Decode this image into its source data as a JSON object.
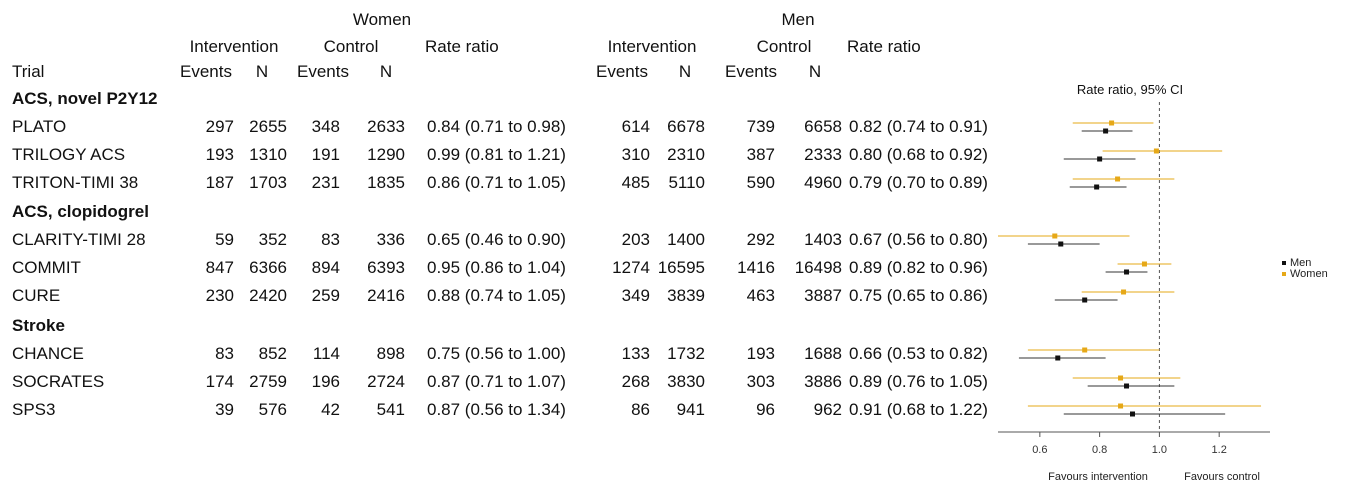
{
  "table": {
    "group_headers": {
      "women": "Women",
      "men": "Men"
    },
    "sub_headers": {
      "intervention": "Intervention",
      "control": "Control",
      "rate_ratio": "Rate ratio"
    },
    "col_headers": {
      "trial": "Trial",
      "events": "Events",
      "n": "N"
    },
    "sections": [
      {
        "label": "ACS, novel P2Y12",
        "rows": [
          {
            "trial": "PLATO",
            "w": [
              "297",
              "2655",
              "348",
              "2633",
              "0.84 (0.71 to 0.98)"
            ],
            "m": [
              "614",
              "6678",
              "739",
              "6658",
              "0.82 (0.74 to 0.91)"
            ]
          },
          {
            "trial": "TRILOGY ACS",
            "w": [
              "193",
              "1310",
              "191",
              "1290",
              "0.99 (0.81 to 1.21)"
            ],
            "m": [
              "310",
              "2310",
              "387",
              "2333",
              "0.80 (0.68 to 0.92)"
            ]
          },
          {
            "trial": "TRITON-TIMI 38",
            "w": [
              "187",
              "1703",
              "231",
              "1835",
              "0.86 (0.71 to 1.05)"
            ],
            "m": [
              "485",
              "5110",
              "590",
              "4960",
              "0.79 (0.70 to 0.89)"
            ]
          }
        ]
      },
      {
        "label": "ACS, clopidogrel",
        "rows": [
          {
            "trial": "CLARITY-TIMI 28",
            "w": [
              "59",
              "352",
              "83",
              "336",
              "0.65 (0.46 to 0.90)"
            ],
            "m": [
              "203",
              "1400",
              "292",
              "1403",
              "0.67 (0.56 to 0.80)"
            ]
          },
          {
            "trial": "COMMIT",
            "w": [
              "847",
              "6366",
              "894",
              "6393",
              "0.95 (0.86 to 1.04)"
            ],
            "m": [
              "1274",
              "16595",
              "1416",
              "16498",
              "0.89 (0.82 to 0.96)"
            ]
          },
          {
            "trial": "CURE",
            "w": [
              "230",
              "2420",
              "259",
              "2416",
              "0.88 (0.74 to 1.05)"
            ],
            "m": [
              "349",
              "3839",
              "463",
              "3887",
              "0.75 (0.65 to 0.86)"
            ]
          }
        ]
      },
      {
        "label": "Stroke",
        "rows": [
          {
            "trial": "CHANCE",
            "w": [
              "83",
              "852",
              "114",
              "898",
              "0.75 (0.56 to 1.00)"
            ],
            "m": [
              "133",
              "1732",
              "193",
              "1688",
              "0.66 (0.53 to 0.82)"
            ]
          },
          {
            "trial": "SOCRATES",
            "w": [
              "174",
              "2759",
              "196",
              "2724",
              "0.87 (0.71 to 1.07)"
            ],
            "m": [
              "268",
              "3830",
              "303",
              "3886",
              "0.89 (0.76 to 1.05)"
            ]
          },
          {
            "trial": "SPS3",
            "w": [
              "39",
              "576",
              "42",
              "541",
              "0.87 (0.56 to 1.34)"
            ],
            "m": [
              "86",
              "941",
              "96",
              "962",
              "0.91 (0.68 to 1.22)"
            ]
          }
        ]
      }
    ]
  },
  "chart_data": {
    "type": "scatter",
    "title": "Rate ratio, 95% CI",
    "xlim": [
      0.46,
      1.37
    ],
    "xticks": [
      0.6,
      0.8,
      1.0,
      1.2
    ],
    "xtick_labels": [
      "0.6",
      "0.8",
      "1.0",
      "1.2"
    ],
    "reference_line": 1.0,
    "favours_left": "Favours intervention",
    "favours_right": "Favours control",
    "legend_position": "right",
    "colors": {
      "women": "#e6a817",
      "men": "#111111"
    },
    "categories": [
      "PLATO",
      "TRILOGY ACS",
      "TRITON-TIMI 38",
      "CLARITY-TIMI 28",
      "COMMIT",
      "CURE",
      "CHANCE",
      "SOCRATES",
      "SPS3"
    ],
    "series": [
      {
        "name": "Men",
        "key": "men",
        "points": [
          [
            0.82,
            0.74,
            0.91
          ],
          [
            0.8,
            0.68,
            0.92
          ],
          [
            0.79,
            0.7,
            0.89
          ],
          [
            0.67,
            0.56,
            0.8
          ],
          [
            0.89,
            0.82,
            0.96
          ],
          [
            0.75,
            0.65,
            0.86
          ],
          [
            0.66,
            0.53,
            0.82
          ],
          [
            0.89,
            0.76,
            1.05
          ],
          [
            0.91,
            0.68,
            1.22
          ]
        ]
      },
      {
        "name": "Women",
        "key": "women",
        "points": [
          [
            0.84,
            0.71,
            0.98
          ],
          [
            0.99,
            0.81,
            1.21
          ],
          [
            0.86,
            0.71,
            1.05
          ],
          [
            0.65,
            0.46,
            0.9
          ],
          [
            0.95,
            0.86,
            1.04
          ],
          [
            0.88,
            0.74,
            1.05
          ],
          [
            0.75,
            0.56,
            1.0
          ],
          [
            0.87,
            0.71,
            1.07
          ],
          [
            0.87,
            0.56,
            1.34
          ]
        ]
      }
    ]
  }
}
